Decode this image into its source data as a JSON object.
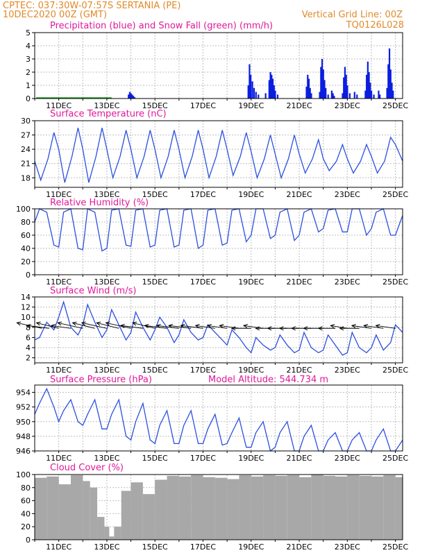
{
  "header": {
    "left_line1": "CPTEC:   037:30W-07:57S   SERTANIA (PE)",
    "left_line2": "10DEC2020 00Z (GMT)",
    "right_line1": "Vertical Grid Line: 00Z",
    "right_line2": "TQ0126L028"
  },
  "colors": {
    "header": "#e08a2a",
    "title": "#e0189a",
    "precip": "#0a1ee0",
    "snow": "#1aa01a",
    "line": "#2a4ee0",
    "cloud": "#a8a8a8",
    "arrow": "#000000"
  },
  "x_ticks": [
    "11DEC",
    "13DEC",
    "15DEC",
    "17DEC",
    "19DEC",
    "21DEC",
    "23DEC",
    "25DEC"
  ],
  "chart_data": [
    {
      "type": "bar",
      "title": "Precipitation (blue) and Snow Fall (green) (mm/h)",
      "xlabel": "",
      "ylabel": "",
      "ylim": [
        0,
        5
      ],
      "yticks": [
        0,
        1,
        2,
        3,
        4,
        5
      ],
      "x_range_days": [
        0,
        15.3
      ],
      "series": [
        {
          "name": "Precipitation",
          "points": [
            [
              3.9,
              0.3
            ],
            [
              3.95,
              0.5
            ],
            [
              4.0,
              0.4
            ],
            [
              4.05,
              0.3
            ],
            [
              4.1,
              0.2
            ],
            [
              4.15,
              0.1
            ],
            [
              8.88,
              1.0
            ],
            [
              8.93,
              2.6
            ],
            [
              8.98,
              1.8
            ],
            [
              9.05,
              1.3
            ],
            [
              9.12,
              0.8
            ],
            [
              9.2,
              0.5
            ],
            [
              9.3,
              0.3
            ],
            [
              9.6,
              0.4
            ],
            [
              9.75,
              1.4
            ],
            [
              9.8,
              2.0
            ],
            [
              9.85,
              1.8
            ],
            [
              9.9,
              1.5
            ],
            [
              9.95,
              1.0
            ],
            [
              10.0,
              0.6
            ],
            [
              10.1,
              0.3
            ],
            [
              11.3,
              0.9
            ],
            [
              11.35,
              1.8
            ],
            [
              11.4,
              1.5
            ],
            [
              11.45,
              0.8
            ],
            [
              11.5,
              0.4
            ],
            [
              11.85,
              0.5
            ],
            [
              11.9,
              2.4
            ],
            [
              11.95,
              3.0
            ],
            [
              12.0,
              2.2
            ],
            [
              12.05,
              1.4
            ],
            [
              12.1,
              0.8
            ],
            [
              12.2,
              0.3
            ],
            [
              12.35,
              0.6
            ],
            [
              12.4,
              0.4
            ],
            [
              12.45,
              0.2
            ],
            [
              12.8,
              0.4
            ],
            [
              12.85,
              1.6
            ],
            [
              12.9,
              2.4
            ],
            [
              12.95,
              1.8
            ],
            [
              13.0,
              1.0
            ],
            [
              13.1,
              0.4
            ],
            [
              13.3,
              0.5
            ],
            [
              13.4,
              0.3
            ],
            [
              13.75,
              0.6
            ],
            [
              13.8,
              1.8
            ],
            [
              13.85,
              2.8
            ],
            [
              13.9,
              2.0
            ],
            [
              13.95,
              1.2
            ],
            [
              14.0,
              0.6
            ],
            [
              14.1,
              0.3
            ],
            [
              14.3,
              0.6
            ],
            [
              14.35,
              0.3
            ],
            [
              14.65,
              0.8
            ],
            [
              14.7,
              2.6
            ],
            [
              14.75,
              3.8
            ],
            [
              14.8,
              2.2
            ],
            [
              14.85,
              1.2
            ],
            [
              14.9,
              0.6
            ]
          ]
        },
        {
          "name": "Snow Fall",
          "points": []
        }
      ]
    },
    {
      "type": "line",
      "title": "Surface Temperature (nC)",
      "xlabel": "",
      "ylabel": "",
      "ylim": [
        16,
        30
      ],
      "yticks": [
        18,
        21,
        24,
        27,
        30
      ],
      "x_range_days": [
        0,
        15.3
      ],
      "series": [
        {
          "name": "",
          "x": [
            0.0,
            0.25,
            0.55,
            0.8,
            1.0,
            1.25,
            1.55,
            1.8,
            2.0,
            2.25,
            2.55,
            2.8,
            3.0,
            3.25,
            3.55,
            3.8,
            4.0,
            4.25,
            4.55,
            4.8,
            5.0,
            5.25,
            5.55,
            5.8,
            6.0,
            6.25,
            6.55,
            6.8,
            7.0,
            7.25,
            7.55,
            7.8,
            8.0,
            8.25,
            8.55,
            8.8,
            9.0,
            9.25,
            9.55,
            9.8,
            10.0,
            10.25,
            10.55,
            10.8,
            11.0,
            11.25,
            11.55,
            11.8,
            12.0,
            12.25,
            12.55,
            12.8,
            13.0,
            13.25,
            13.55,
            13.8,
            14.0,
            14.25,
            14.55,
            14.8,
            15.0,
            15.3
          ],
          "values": [
            21.5,
            17.5,
            22.0,
            27.5,
            24.0,
            17.0,
            22.5,
            28.5,
            24.0,
            17.0,
            22.5,
            28.5,
            24.0,
            18.0,
            22.5,
            28.0,
            24.0,
            18.0,
            22.5,
            28.0,
            24.0,
            18.0,
            22.5,
            28.0,
            24.0,
            18.0,
            22.5,
            28.0,
            24.0,
            18.0,
            22.5,
            28.0,
            24.0,
            18.5,
            22.5,
            27.5,
            23.5,
            18.0,
            22.0,
            27.0,
            23.0,
            18.0,
            22.0,
            27.0,
            23.0,
            19.0,
            22.0,
            26.0,
            22.0,
            19.5,
            21.5,
            25.0,
            22.0,
            19.0,
            21.5,
            25.0,
            22.5,
            19.0,
            21.5,
            26.5,
            25.0,
            21.5
          ]
        }
      ]
    },
    {
      "type": "line",
      "title": "Relative Humidity (%)",
      "xlabel": "",
      "ylabel": "",
      "ylim": [
        0,
        100
      ],
      "yticks": [
        0,
        20,
        40,
        60,
        80,
        100
      ],
      "x_range_days": [
        0,
        15.3
      ],
      "series": [
        {
          "name": "",
          "x": [
            0.0,
            0.2,
            0.5,
            0.8,
            1.0,
            1.2,
            1.5,
            1.8,
            2.0,
            2.2,
            2.5,
            2.8,
            3.0,
            3.2,
            3.5,
            3.8,
            4.0,
            4.2,
            4.5,
            4.8,
            5.0,
            5.2,
            5.5,
            5.8,
            6.0,
            6.2,
            6.5,
            6.8,
            7.0,
            7.2,
            7.5,
            7.8,
            8.0,
            8.2,
            8.5,
            8.8,
            9.0,
            9.2,
            9.5,
            9.8,
            10.0,
            10.2,
            10.5,
            10.8,
            11.0,
            11.2,
            11.5,
            11.8,
            12.0,
            12.2,
            12.5,
            12.8,
            13.0,
            13.2,
            13.5,
            13.8,
            14.0,
            14.2,
            14.5,
            14.8,
            15.0,
            15.3
          ],
          "values": [
            80,
            100,
            95,
            45,
            42,
            95,
            100,
            40,
            38,
            100,
            95,
            36,
            40,
            98,
            100,
            45,
            43,
            98,
            100,
            42,
            45,
            98,
            100,
            42,
            45,
            98,
            100,
            40,
            45,
            98,
            100,
            45,
            48,
            98,
            100,
            50,
            60,
            100,
            100,
            55,
            60,
            95,
            100,
            52,
            60,
            95,
            100,
            65,
            70,
            98,
            100,
            65,
            65,
            100,
            100,
            60,
            70,
            95,
            100,
            60,
            60,
            90
          ]
        }
      ]
    },
    {
      "type": "line",
      "title": "Surface Wind (m/s)",
      "xlabel": "",
      "ylabel": "",
      "ylim": [
        1,
        14
      ],
      "yticks": [
        2,
        4,
        6,
        8,
        10,
        12,
        14
      ],
      "x_range_days": [
        0,
        15.3
      ],
      "series": [
        {
          "name": "",
          "x": [
            0.0,
            0.2,
            0.5,
            0.8,
            1.0,
            1.2,
            1.5,
            1.8,
            2.0,
            2.2,
            2.5,
            2.8,
            3.0,
            3.2,
            3.5,
            3.8,
            4.0,
            4.2,
            4.5,
            4.8,
            5.0,
            5.2,
            5.5,
            5.8,
            6.0,
            6.2,
            6.5,
            6.8,
            7.0,
            7.2,
            7.5,
            7.8,
            8.0,
            8.2,
            8.5,
            8.8,
            9.0,
            9.2,
            9.5,
            9.8,
            10.0,
            10.2,
            10.5,
            10.8,
            11.0,
            11.2,
            11.5,
            11.8,
            12.0,
            12.2,
            12.5,
            12.8,
            13.0,
            13.2,
            13.5,
            13.8,
            14.0,
            14.2,
            14.5,
            14.8,
            15.0,
            15.3
          ],
          "values": [
            5.5,
            6.0,
            9.0,
            7.5,
            10.0,
            13.0,
            8.0,
            6.5,
            8.5,
            12.5,
            9.0,
            6.0,
            7.5,
            11.5,
            8.5,
            5.5,
            7.0,
            11.0,
            8.0,
            5.5,
            7.5,
            10.0,
            8.0,
            5.0,
            6.5,
            9.5,
            7.0,
            5.5,
            6.0,
            8.5,
            7.0,
            5.5,
            4.5,
            7.5,
            6.0,
            4.0,
            3.0,
            6.0,
            4.5,
            3.5,
            4.0,
            6.5,
            4.5,
            3.0,
            3.5,
            7.0,
            4.0,
            3.0,
            3.5,
            6.5,
            4.5,
            2.5,
            3.0,
            7.0,
            4.0,
            3.0,
            4.0,
            6.5,
            3.5,
            5.0,
            8.5,
            7.0
          ]
        }
      ],
      "vectors": {
        "x": [
          0.3,
          0.6,
          1.0,
          1.5,
          2.0,
          2.5,
          3.0,
          3.5,
          4.0,
          4.5,
          5.0,
          5.5,
          6.0,
          6.5,
          7.0,
          7.5,
          8.0,
          8.5,
          9.0,
          9.5,
          10.0,
          10.5,
          11.0,
          11.5,
          12.0,
          12.5,
          13.0,
          13.5,
          14.0,
          14.5,
          15.0
        ],
        "u": [
          -9,
          -8,
          -8,
          -7,
          -9,
          -8,
          -9,
          -8,
          -9,
          -8,
          -8,
          -8,
          -8,
          -8,
          -8,
          -7,
          -7,
          -7,
          -7,
          -7,
          -7,
          -7,
          -7,
          -7,
          -7,
          -6,
          -6,
          -7,
          -7,
          -7,
          -7
        ],
        "v": [
          2,
          1,
          2,
          1,
          2,
          2,
          2,
          2,
          2,
          1,
          2,
          1,
          1,
          1,
          1,
          1,
          1,
          1,
          0,
          1,
          0,
          0,
          0,
          0,
          0,
          0,
          1,
          0,
          1,
          1,
          1
        ]
      }
    },
    {
      "type": "line",
      "title": "Surface Pressure (hPa)",
      "annotation": "Model Altitude: 544.734 m",
      "xlabel": "",
      "ylabel": "",
      "ylim": [
        946,
        955
      ],
      "yticks": [
        946,
        948,
        950,
        952,
        954
      ],
      "x_range_days": [
        0,
        15.3
      ],
      "series": [
        {
          "name": "",
          "x": [
            0.0,
            0.2,
            0.5,
            0.8,
            1.0,
            1.2,
            1.5,
            1.8,
            2.0,
            2.2,
            2.5,
            2.8,
            3.0,
            3.2,
            3.5,
            3.8,
            4.0,
            4.2,
            4.5,
            4.8,
            5.0,
            5.2,
            5.5,
            5.8,
            6.0,
            6.2,
            6.5,
            6.8,
            7.0,
            7.2,
            7.5,
            7.8,
            8.0,
            8.2,
            8.5,
            8.8,
            9.0,
            9.2,
            9.5,
            9.8,
            10.0,
            10.2,
            10.5,
            10.8,
            11.0,
            11.2,
            11.5,
            11.8,
            12.0,
            12.2,
            12.5,
            12.8,
            13.0,
            13.2,
            13.5,
            13.8,
            14.0,
            14.2,
            14.5,
            14.8,
            15.0,
            15.3
          ],
          "values": [
            951.0,
            952.5,
            954.5,
            952.0,
            950.0,
            951.5,
            953.0,
            950.0,
            949.5,
            951.0,
            953.0,
            949.0,
            949.0,
            951.0,
            953.0,
            948.0,
            947.5,
            950.0,
            952.5,
            947.5,
            947.0,
            949.5,
            951.5,
            947.0,
            947.0,
            949.5,
            951.5,
            947.0,
            947.0,
            949.0,
            951.0,
            946.8,
            947.0,
            948.5,
            950.5,
            946.5,
            946.5,
            948.5,
            950.0,
            946.0,
            946.5,
            948.5,
            950.0,
            946.0,
            946.0,
            948.0,
            949.5,
            946.0,
            946.0,
            947.5,
            948.5,
            946.0,
            946.0,
            947.5,
            948.5,
            946.0,
            946.0,
            947.5,
            949.0,
            946.0,
            946.0,
            947.5
          ]
        }
      ]
    },
    {
      "type": "bar",
      "title": "Cloud Cover (%)",
      "xlabel": "",
      "ylabel": "",
      "ylim": [
        0,
        100
      ],
      "yticks": [
        0,
        20,
        40,
        60,
        80,
        100
      ],
      "x_range_days": [
        0,
        15.3
      ],
      "series": [
        {
          "name": "",
          "x": [
            0.0,
            0.5,
            1.0,
            1.5,
            2.0,
            2.3,
            2.6,
            2.9,
            3.1,
            3.3,
            3.6,
            4.0,
            4.5,
            5.0,
            5.5,
            6.0,
            6.5,
            7.0,
            7.5,
            8.0,
            8.5,
            9.0,
            9.5,
            10.0,
            10.5,
            11.0,
            11.5,
            12.0,
            12.5,
            13.0,
            13.5,
            14.0,
            14.5,
            15.0
          ],
          "values": [
            95,
            97,
            85,
            99,
            90,
            80,
            35,
            20,
            5,
            20,
            75,
            88,
            70,
            92,
            98,
            97,
            99,
            96,
            95,
            93,
            99,
            97,
            99,
            98,
            99,
            96,
            100,
            98,
            97,
            99,
            98,
            97,
            99,
            96
          ]
        }
      ]
    }
  ]
}
